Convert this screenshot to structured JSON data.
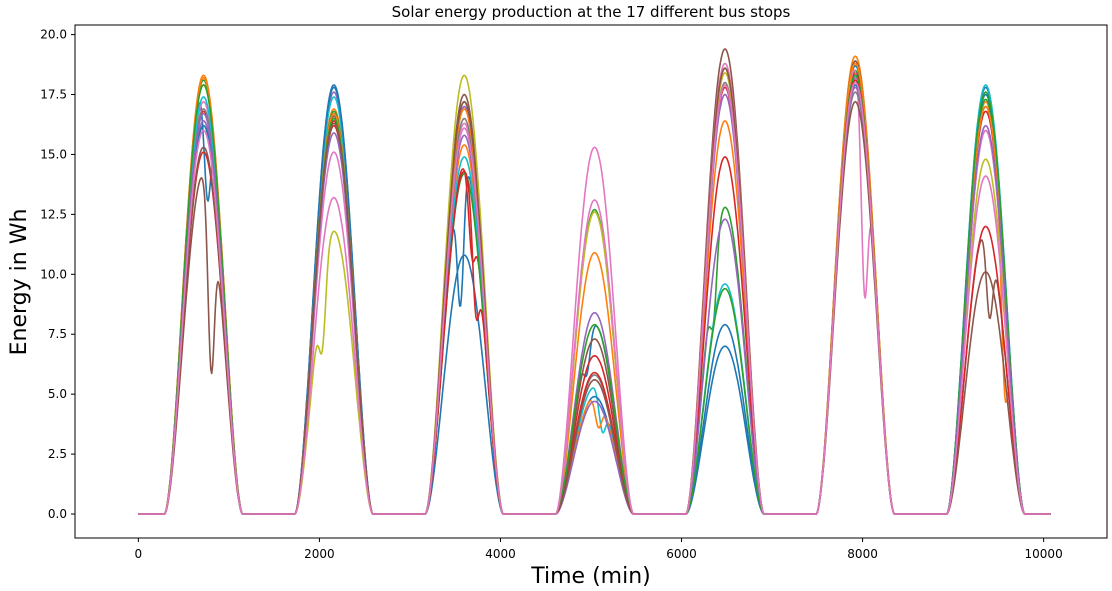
{
  "chart_data": {
    "type": "line",
    "title": "Solar energy production at the 17 different bus stops",
    "xlabel": "Time (min)",
    "ylabel": "Energy in Wh",
    "xlim": [
      -700,
      10700
    ],
    "ylim": [
      -1.0,
      20.4
    ],
    "xticks": [
      0,
      2000,
      4000,
      6000,
      8000,
      10000
    ],
    "xtick_labels": [
      "0",
      "2000",
      "4000",
      "6000",
      "8000",
      "10000"
    ],
    "yticks": [
      0,
      2.5,
      5,
      7.5,
      10,
      12.5,
      15,
      17.5,
      20
    ],
    "ytick_labels": [
      "0.0",
      "2.5",
      "5.0",
      "7.5",
      "10.0",
      "12.5",
      "15.0",
      "17.5",
      "20.0"
    ],
    "grid": false,
    "legend": "none",
    "x_range": [
      0,
      10080
    ],
    "day_windows": [
      {
        "start": 290,
        "end": 1150,
        "peak_x": 700
      },
      {
        "start": 1730,
        "end": 2590,
        "peak_x": 2150
      },
      {
        "start": 3170,
        "end": 4030,
        "peak_x": 3600
      },
      {
        "start": 4610,
        "end": 5470,
        "peak_x": 5040
      },
      {
        "start": 6050,
        "end": 6910,
        "peak_x": 6480
      },
      {
        "start": 7490,
        "end": 8350,
        "peak_x": 7920
      },
      {
        "start": 8930,
        "end": 9790,
        "peak_x": 9360
      }
    ],
    "series": [
      {
        "color": "#1f77b4",
        "peaks": [
          17.8,
          17.9,
          14.7,
          7.9,
          7.9,
          18.7,
          17.8
        ],
        "dips": [
          [
            0,
            0.55,
            0.25
          ],
          [
            2,
            0.45,
            0.4
          ],
          [
            3,
            0.4,
            0.2
          ]
        ]
      },
      {
        "color": "#ff7f0e",
        "peaks": [
          18.3,
          16.9,
          15.4,
          10.9,
          16.4,
          19.1,
          17.2
        ],
        "dips": [
          [
            6,
            0.75,
            0.5
          ]
        ]
      },
      {
        "color": "#2ca02c",
        "peaks": [
          18.1,
          16.8,
          17.2,
          12.7,
          12.8,
          18.5,
          17.3
        ],
        "dips": [
          [
            4,
            0.35,
            0.25
          ]
        ]
      },
      {
        "color": "#d62728",
        "peaks": [
          16.8,
          16.4,
          14.5,
          6.6,
          14.9,
          18.4,
          16.8
        ],
        "dips": [
          [
            2,
            0.6,
            0.2
          ]
        ]
      },
      {
        "color": "#9467bd",
        "peaks": [
          16.4,
          17.6,
          17.0,
          8.4,
          12.3,
          18.2,
          16.0
        ],
        "dips": []
      },
      {
        "color": "#8c564b",
        "peaks": [
          14.2,
          16.6,
          17.5,
          7.3,
          19.4,
          18.9,
          11.9
        ],
        "dips": [
          [
            0,
            0.6,
            0.55
          ],
          [
            6,
            0.55,
            0.3
          ]
        ]
      },
      {
        "color": "#e377c2",
        "peaks": [
          17.2,
          15.1,
          16.3,
          15.3,
          18.8,
          18.6,
          16.0
        ],
        "dips": [
          [
            5,
            0.62,
            0.45
          ]
        ]
      },
      {
        "color": "#7f7f7f",
        "peaks": [
          16.9,
          16.7,
          16.5,
          5.8,
          18.0,
          17.6,
          17.0
        ],
        "dips": []
      },
      {
        "color": "#bcbd22",
        "peaks": [
          17.9,
          11.8,
          18.3,
          12.6,
          18.4,
          18.8,
          14.8
        ],
        "dips": [
          [
            1,
            0.35,
            0.3
          ]
        ]
      },
      {
        "color": "#17becf",
        "peaks": [
          17.4,
          17.4,
          14.9,
          5.3,
          9.6,
          18.1,
          17.9
        ],
        "dips": [
          [
            3,
            0.6,
            0.3
          ]
        ]
      },
      {
        "color": "#1f77b4",
        "peaks": [
          16.2,
          17.8,
          10.8,
          4.9,
          7.0,
          17.9,
          17.5
        ],
        "dips": []
      },
      {
        "color": "#ff7f0e",
        "peaks": [
          18.2,
          16.7,
          16.9,
          4.9,
          18.6,
          18.8,
          17.0
        ],
        "dips": [
          [
            3,
            0.55,
            0.25
          ]
        ]
      },
      {
        "color": "#2ca02c",
        "peaks": [
          17.9,
          16.5,
          14.2,
          7.9,
          9.4,
          18.3,
          17.6
        ],
        "dips": []
      },
      {
        "color": "#d62728",
        "peaks": [
          15.1,
          16.2,
          14.3,
          5.9,
          17.8,
          18.1,
          12.0
        ],
        "dips": [
          [
            2,
            0.65,
            0.3
          ]
        ]
      },
      {
        "color": "#9467bd",
        "peaks": [
          16.7,
          15.9,
          15.8,
          4.7,
          17.5,
          17.8,
          16.2
        ],
        "dips": []
      },
      {
        "color": "#8c564b",
        "peaks": [
          15.3,
          16.3,
          17.2,
          5.6,
          18.6,
          17.2,
          10.1
        ],
        "dips": []
      },
      {
        "color": "#e377c2",
        "peaks": [
          16.0,
          13.2,
          16.1,
          13.1,
          17.9,
          18.0,
          14.1
        ],
        "dips": []
      }
    ]
  }
}
